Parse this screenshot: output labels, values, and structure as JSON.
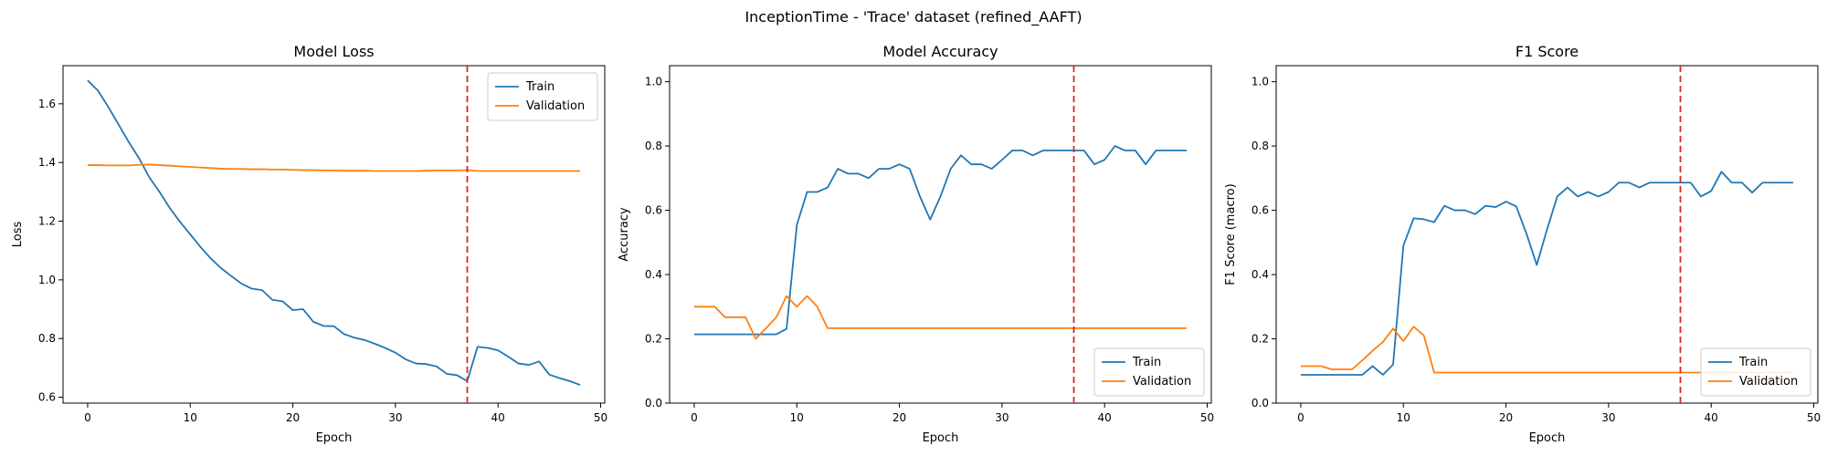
{
  "figure": {
    "suptitle": "InceptionTime - 'Trace' dataset (refined_AAFT)"
  },
  "colors": {
    "train": "#1f77b4",
    "validation": "#ff7f0e",
    "marker": "#d62728"
  },
  "chart_data": [
    {
      "type": "line",
      "title": "Model Loss",
      "xlabel": "Epoch",
      "ylabel": "Loss",
      "xlim": [
        -2.4,
        50.4
      ],
      "ylim": [
        0.58,
        1.73
      ],
      "xticks": [
        0,
        10,
        20,
        30,
        40,
        50
      ],
      "yticks": [
        0.6,
        0.8,
        1.0,
        1.2,
        1.4,
        1.6
      ],
      "tick_decimals": 1,
      "vline_x": 37,
      "legend_position": "upper right",
      "x": [
        0,
        1,
        2,
        3,
        4,
        5,
        6,
        7,
        8,
        9,
        10,
        11,
        12,
        13,
        14,
        15,
        16,
        17,
        18,
        19,
        20,
        21,
        22,
        23,
        24,
        25,
        26,
        27,
        28,
        29,
        30,
        31,
        32,
        33,
        34,
        35,
        36,
        37,
        38,
        39,
        40,
        41,
        42,
        43,
        44,
        45,
        46,
        47,
        48
      ],
      "series": [
        {
          "name": "Train",
          "color_key": "train",
          "values": [
            1.68,
            1.645,
            1.59,
            1.53,
            1.47,
            1.415,
            1.35,
            1.3,
            1.245,
            1.198,
            1.155,
            1.112,
            1.073,
            1.04,
            1.013,
            0.987,
            0.97,
            0.965,
            0.932,
            0.927,
            0.897,
            0.9,
            0.857,
            0.843,
            0.842,
            0.815,
            0.803,
            0.795,
            0.782,
            0.768,
            0.752,
            0.729,
            0.715,
            0.713,
            0.705,
            0.68,
            0.675,
            0.655,
            0.772,
            0.768,
            0.76,
            0.738,
            0.715,
            0.71,
            0.722,
            0.677,
            0.665,
            0.655,
            0.642
          ]
        },
        {
          "name": "Validation",
          "color_key": "validation",
          "values": [
            1.391,
            1.391,
            1.39,
            1.39,
            1.39,
            1.392,
            1.393,
            1.391,
            1.389,
            1.387,
            1.385,
            1.383,
            1.381,
            1.379,
            1.378,
            1.378,
            1.377,
            1.377,
            1.376,
            1.376,
            1.375,
            1.374,
            1.374,
            1.373,
            1.373,
            1.372,
            1.372,
            1.372,
            1.371,
            1.371,
            1.371,
            1.371,
            1.371,
            1.372,
            1.373,
            1.373,
            1.373,
            1.374,
            1.371,
            1.371,
            1.371,
            1.371,
            1.371,
            1.371,
            1.371,
            1.371,
            1.371,
            1.371,
            1.371
          ]
        }
      ]
    },
    {
      "type": "line",
      "title": "Model Accuracy",
      "xlabel": "Epoch",
      "ylabel": "Accuracy",
      "xlim": [
        -2.4,
        50.4
      ],
      "ylim": [
        0.0,
        1.05
      ],
      "xticks": [
        0,
        10,
        20,
        30,
        40,
        50
      ],
      "yticks": [
        0.0,
        0.2,
        0.4,
        0.6,
        0.8,
        1.0
      ],
      "tick_decimals": 1,
      "vline_x": 37,
      "legend_position": "lower right",
      "x": [
        0,
        1,
        2,
        3,
        4,
        5,
        6,
        7,
        8,
        9,
        10,
        11,
        12,
        13,
        14,
        15,
        16,
        17,
        18,
        19,
        20,
        21,
        22,
        23,
        24,
        25,
        26,
        27,
        28,
        29,
        30,
        31,
        32,
        33,
        34,
        35,
        36,
        37,
        38,
        39,
        40,
        41,
        42,
        43,
        44,
        45,
        46,
        47,
        48
      ],
      "series": [
        {
          "name": "Train",
          "color_key": "train",
          "values": [
            0.214,
            0.214,
            0.214,
            0.214,
            0.214,
            0.214,
            0.214,
            0.214,
            0.214,
            0.231,
            0.554,
            0.657,
            0.657,
            0.671,
            0.729,
            0.714,
            0.714,
            0.7,
            0.729,
            0.729,
            0.743,
            0.729,
            0.643,
            0.571,
            0.643,
            0.729,
            0.771,
            0.743,
            0.743,
            0.729,
            0.757,
            0.786,
            0.786,
            0.771,
            0.786,
            0.786,
            0.786,
            0.786,
            0.786,
            0.743,
            0.757,
            0.8,
            0.786,
            0.786,
            0.743,
            0.786,
            0.786,
            0.786,
            0.786
          ]
        },
        {
          "name": "Validation",
          "color_key": "validation",
          "values": [
            0.3,
            0.3,
            0.3,
            0.267,
            0.267,
            0.267,
            0.2,
            0.233,
            0.267,
            0.333,
            0.3,
            0.333,
            0.3,
            0.233,
            0.233,
            0.233,
            0.233,
            0.233,
            0.233,
            0.233,
            0.233,
            0.233,
            0.233,
            0.233,
            0.233,
            0.233,
            0.233,
            0.233,
            0.233,
            0.233,
            0.233,
            0.233,
            0.233,
            0.233,
            0.233,
            0.233,
            0.233,
            0.233,
            0.233,
            0.233,
            0.233,
            0.233,
            0.233,
            0.233,
            0.233,
            0.233,
            0.233,
            0.233,
            0.233
          ]
        }
      ]
    },
    {
      "type": "line",
      "title": "F1 Score",
      "xlabel": "Epoch",
      "ylabel": "F1 Score (macro)",
      "xlim": [
        -2.4,
        50.4
      ],
      "ylim": [
        0.0,
        1.05
      ],
      "xticks": [
        0,
        10,
        20,
        30,
        40,
        50
      ],
      "yticks": [
        0.0,
        0.2,
        0.4,
        0.6,
        0.8,
        1.0
      ],
      "tick_decimals": 1,
      "vline_x": 37,
      "legend_position": "lower right",
      "x": [
        0,
        1,
        2,
        3,
        4,
        5,
        6,
        7,
        8,
        9,
        10,
        11,
        12,
        13,
        14,
        15,
        16,
        17,
        18,
        19,
        20,
        21,
        22,
        23,
        24,
        25,
        26,
        27,
        28,
        29,
        30,
        31,
        32,
        33,
        34,
        35,
        36,
        37,
        38,
        39,
        40,
        41,
        42,
        43,
        44,
        45,
        46,
        47,
        48
      ],
      "series": [
        {
          "name": "Train",
          "color_key": "train",
          "values": [
            0.088,
            0.088,
            0.088,
            0.088,
            0.088,
            0.088,
            0.088,
            0.115,
            0.088,
            0.12,
            0.49,
            0.575,
            0.572,
            0.563,
            0.614,
            0.6,
            0.6,
            0.588,
            0.614,
            0.61,
            0.627,
            0.612,
            0.527,
            0.43,
            0.54,
            0.643,
            0.671,
            0.643,
            0.657,
            0.643,
            0.657,
            0.686,
            0.686,
            0.671,
            0.686,
            0.686,
            0.686,
            0.686,
            0.686,
            0.643,
            0.66,
            0.72,
            0.686,
            0.686,
            0.655,
            0.686,
            0.686,
            0.686,
            0.686
          ]
        },
        {
          "name": "Validation",
          "color_key": "validation",
          "values": [
            0.115,
            0.115,
            0.115,
            0.105,
            0.105,
            0.105,
            0.133,
            0.163,
            0.19,
            0.232,
            0.193,
            0.238,
            0.21,
            0.095,
            0.095,
            0.095,
            0.095,
            0.095,
            0.095,
            0.095,
            0.095,
            0.095,
            0.095,
            0.095,
            0.095,
            0.095,
            0.095,
            0.095,
            0.095,
            0.095,
            0.095,
            0.095,
            0.095,
            0.095,
            0.095,
            0.095,
            0.095,
            0.095,
            0.095,
            0.095,
            0.095,
            0.095,
            0.095,
            0.095,
            0.095,
            0.095,
            0.095,
            0.095,
            0.095
          ]
        }
      ]
    }
  ]
}
